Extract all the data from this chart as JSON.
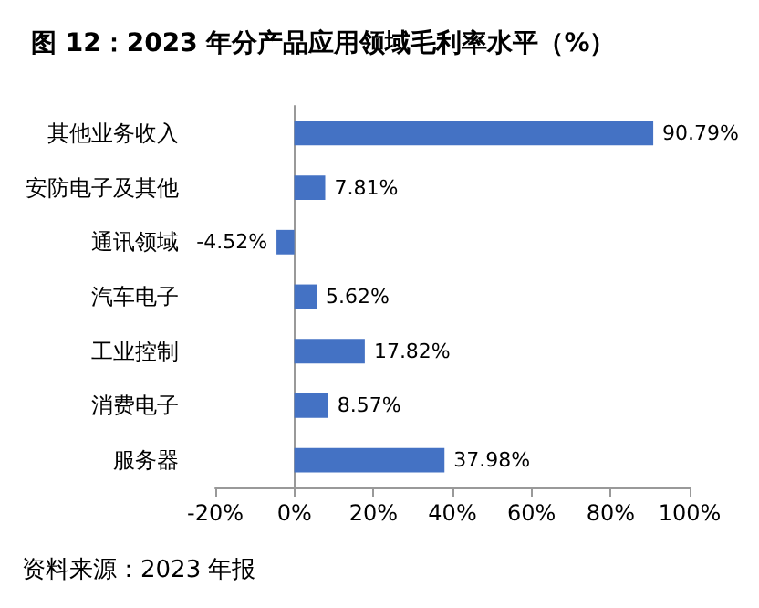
{
  "chart_data": {
    "type": "bar",
    "orientation": "horizontal",
    "title": "图 12：2023 年分产品应用领域毛利率水平（%）",
    "categories": [
      "其他业务收入",
      "安防电子及其他",
      "通讯领域",
      "汽车电子",
      "工业控制",
      "消费电子",
      "服务器"
    ],
    "values": [
      90.79,
      7.81,
      -4.52,
      5.62,
      17.82,
      8.57,
      37.98
    ],
    "value_labels": [
      "90.79%",
      "7.81%",
      "-4.52%",
      "5.62%",
      "17.82%",
      "8.57%",
      "37.98%"
    ],
    "color": "#4472c4",
    "xlim": [
      -20,
      100
    ],
    "xticks": [
      {
        "value": -20,
        "label": "-20%"
      },
      {
        "value": 0,
        "label": "0%"
      },
      {
        "value": 20,
        "label": "20%"
      },
      {
        "value": 40,
        "label": "40%"
      },
      {
        "value": 60,
        "label": "60%"
      },
      {
        "value": 80,
        "label": "80%"
      },
      {
        "value": 100,
        "label": "100%"
      }
    ],
    "annotations": [
      "资料来源：2023 年报"
    ]
  }
}
